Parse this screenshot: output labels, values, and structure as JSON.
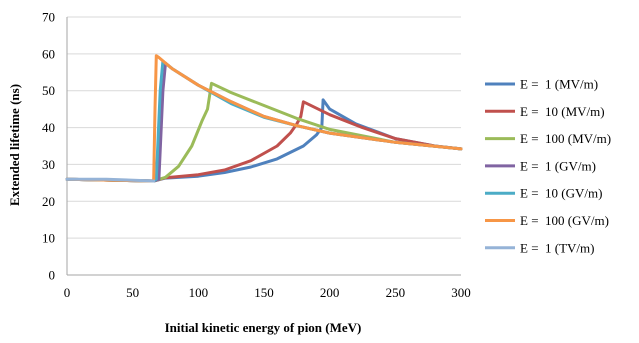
{
  "chart_data": {
    "type": "line",
    "title": "",
    "xlabel": "Initial kinetic energy of pion (MeV)",
    "ylabel": "Extended lifetime (ns)",
    "xlim": [
      0,
      300
    ],
    "ylim": [
      0,
      70
    ],
    "xticks": [
      0,
      50,
      100,
      150,
      200,
      250,
      300
    ],
    "yticks": [
      0,
      10,
      20,
      30,
      40,
      50,
      60,
      70
    ],
    "grid": "horizontal",
    "legend_position": "right",
    "series": [
      {
        "name": "E =  1 (MV/m)",
        "color": "#4f81bd",
        "x": [
          0,
          66,
          75,
          100,
          120,
          140,
          160,
          180,
          190,
          194,
          195,
          200,
          220,
          250,
          280,
          300
        ],
        "y": [
          26,
          25.5,
          26.3,
          26.8,
          27.8,
          29.3,
          31.5,
          35,
          38,
          40,
          47.5,
          45,
          41,
          37,
          35,
          34.2
        ]
      },
      {
        "name": "E =  10 (MV/m)",
        "color": "#c0504d",
        "x": [
          0,
          66,
          75,
          100,
          120,
          140,
          160,
          170,
          175,
          178,
          179,
          180,
          200,
          225,
          250,
          280,
          300
        ],
        "y": [
          26,
          25.5,
          26.4,
          27.2,
          28.5,
          31,
          35,
          38.5,
          41,
          43,
          45,
          47,
          43.5,
          40,
          37,
          35,
          34.2
        ]
      },
      {
        "name": "E =  100 (MV/m)",
        "color": "#9bbb59",
        "x": [
          0,
          66,
          75,
          85,
          95,
          103,
          107,
          110,
          125,
          150,
          175,
          200,
          250,
          300
        ],
        "y": [
          26,
          25.5,
          26.5,
          29.5,
          35,
          42,
          45,
          52,
          49.5,
          46,
          42.5,
          39.5,
          36,
          34.2
        ]
      },
      {
        "name": "E =  1 (GV/m)",
        "color": "#8064a2",
        "x": [
          0,
          66,
          70,
          73,
          75,
          80,
          100,
          125,
          150,
          175,
          200,
          250,
          300
        ],
        "y": [
          26,
          25.5,
          26,
          50,
          57.5,
          56,
          51.5,
          47,
          43,
          40.5,
          38.5,
          36,
          34.2
        ]
      },
      {
        "name": "E =  10 (GV/m)",
        "color": "#4bacc6",
        "x": [
          0,
          66,
          68,
          71,
          73,
          80,
          100,
          125,
          150,
          175,
          200,
          250,
          300
        ],
        "y": [
          26,
          25.5,
          26,
          50,
          58,
          56,
          51.5,
          46.5,
          42.8,
          40.5,
          38.5,
          36,
          34.2
        ]
      },
      {
        "name": "E =  100 (GV/m)",
        "color": "#f79646",
        "x": [
          0,
          65,
          66,
          67,
          68,
          70,
          80,
          100,
          125,
          150,
          175,
          200,
          250,
          300
        ],
        "y": [
          26,
          25.5,
          26,
          45,
          59.5,
          59,
          56,
          51.5,
          47,
          43,
          40.5,
          38.5,
          36,
          34.2
        ]
      },
      {
        "name": "E =  1 (TV/m)",
        "color": "#95b3d7",
        "x": [
          0,
          30,
          66
        ],
        "y": [
          26,
          26,
          25.5
        ]
      }
    ]
  }
}
